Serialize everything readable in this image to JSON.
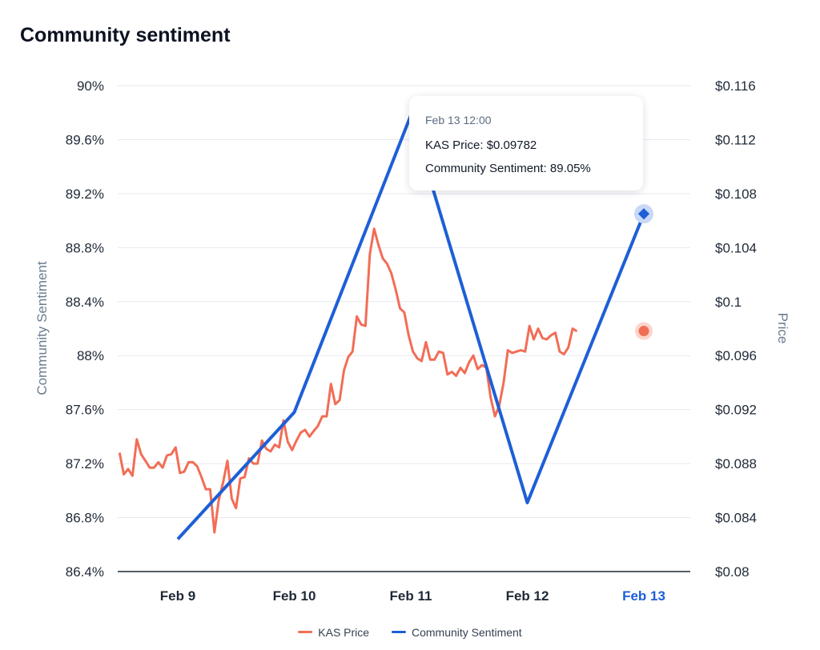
{
  "title": "Community sentiment",
  "tooltip": {
    "time": "Feb 13 12:00",
    "price_label": "KAS Price: $0.09782",
    "sentiment_label": "Community Sentiment: 89.05%"
  },
  "legend": [
    {
      "label": "KAS Price",
      "color": "#f26d56"
    },
    {
      "label": "Community Sentiment",
      "color": "#1d5fd6"
    }
  ],
  "chart_data": {
    "type": "line",
    "x_ticks": [
      "Feb 9",
      "Feb 10",
      "Feb 11",
      "Feb 12",
      "Feb 13"
    ],
    "active_x_tick": "Feb 13",
    "left_axis": {
      "label": "Community Sentiment",
      "ticks": [
        "90%",
        "89.6%",
        "89.2%",
        "88.8%",
        "88.4%",
        "88%",
        "87.6%",
        "87.2%",
        "86.8%",
        "86.4%"
      ],
      "ylim": [
        86.4,
        90
      ]
    },
    "right_axis": {
      "label": "Price",
      "ticks": [
        "$0.116",
        "$0.112",
        "$0.108",
        "$0.104",
        "$0.1",
        "$0.096",
        "$0.092",
        "$0.088",
        "$0.084",
        "$0.08"
      ],
      "ylim": [
        0.08,
        0.116
      ]
    },
    "grid": true,
    "legend_position": "bottom",
    "series": [
      {
        "name": "Community Sentiment",
        "axis": "left",
        "color": "#1d5fd6",
        "points": [
          [
            0,
            86.64
          ],
          [
            1,
            87.58
          ],
          [
            2,
            89.78
          ],
          [
            3,
            86.91
          ],
          [
            4,
            89.05
          ]
        ]
      },
      {
        "name": "KAS Price",
        "axis": "right",
        "color": "#f26d56",
        "x_start": -0.5,
        "x_step": 0.037037,
        "values": [
          0.0888,
          0.0872,
          0.0876,
          0.0871,
          0.0898,
          0.0887,
          0.0882,
          0.0877,
          0.0877,
          0.0881,
          0.0877,
          0.0886,
          0.0887,
          0.0892,
          0.0873,
          0.0874,
          0.0881,
          0.0881,
          0.0878,
          0.087,
          0.0861,
          0.0861,
          0.0829,
          0.0853,
          0.0866,
          0.0882,
          0.0854,
          0.0847,
          0.0869,
          0.087,
          0.0884,
          0.088,
          0.088,
          0.0897,
          0.0891,
          0.0889,
          0.0894,
          0.0892,
          0.0912,
          0.0896,
          0.089,
          0.0897,
          0.0903,
          0.0905,
          0.09,
          0.0904,
          0.0908,
          0.0915,
          0.0915,
          0.0939,
          0.0924,
          0.0927,
          0.0949,
          0.0959,
          0.0963,
          0.0989,
          0.0983,
          0.0982,
          0.1035,
          0.1054,
          0.1042,
          0.1032,
          0.1028,
          0.1021,
          0.1009,
          0.0995,
          0.0992,
          0.0975,
          0.0963,
          0.0958,
          0.0956,
          0.097,
          0.0957,
          0.0957,
          0.0963,
          0.0962,
          0.0946,
          0.0948,
          0.0945,
          0.0951,
          0.0947,
          0.0955,
          0.096,
          0.095,
          0.0953,
          0.0951,
          0.0929,
          0.0915,
          0.0923,
          0.094,
          0.0964,
          0.0962,
          0.0963,
          0.0964,
          0.0963,
          0.0982,
          0.0972,
          0.098,
          0.0973,
          0.0972,
          0.0975,
          0.0977,
          0.0963,
          0.0961,
          0.0966,
          0.098,
          0.0978
        ]
      }
    ],
    "highlighted_point": {
      "x": "Feb 13 12:00",
      "price": 0.09782,
      "sentiment": 89.05
    }
  }
}
